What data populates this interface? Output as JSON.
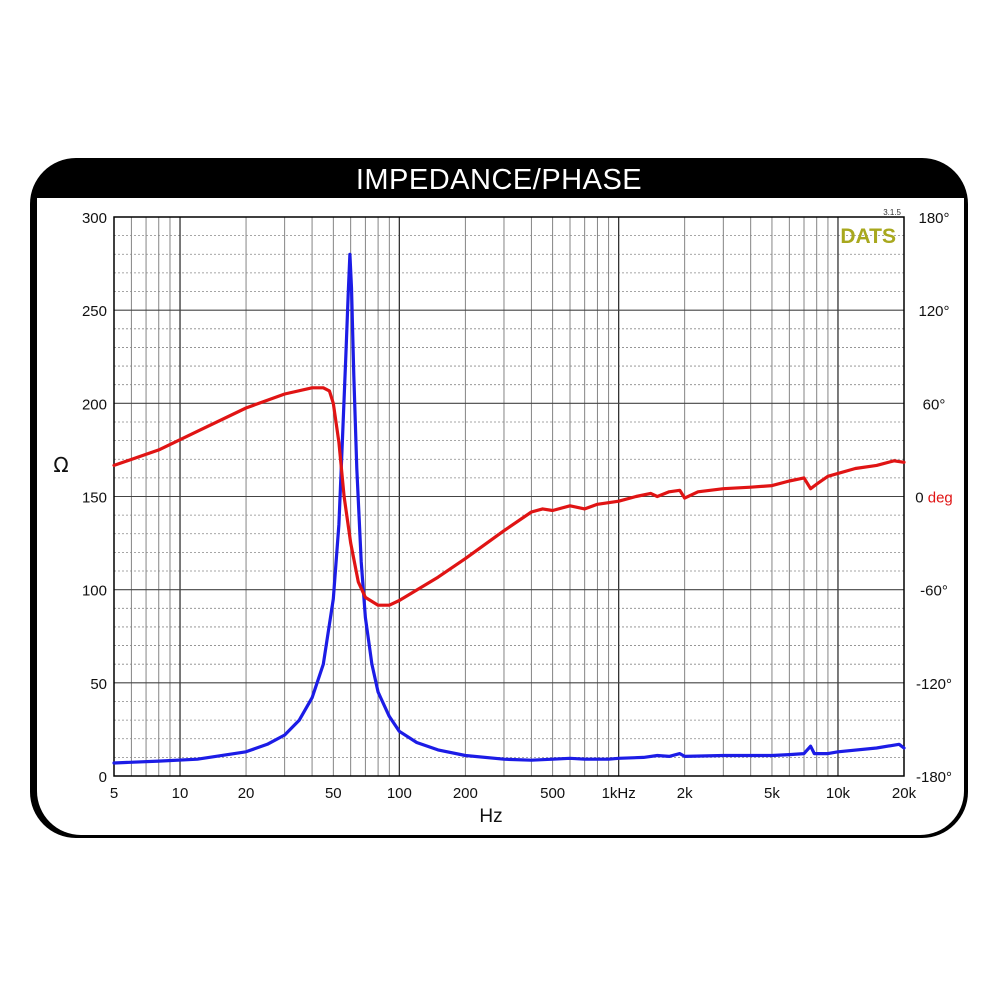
{
  "chart_data": {
    "type": "line",
    "title": "IMPEDANCE/PHASE",
    "brand": "DATS",
    "version": "3.1.5",
    "xlabel": "Hz",
    "ylabel": "Ω",
    "y2label": "0 deg",
    "x_scale": "log",
    "xlim": [
      5,
      20000
    ],
    "ylim": [
      0,
      300
    ],
    "y2lim": [
      -180,
      180
    ],
    "grid": true,
    "x_ticks": [
      {
        "value": 5,
        "label": "5"
      },
      {
        "value": 10,
        "label": "10"
      },
      {
        "value": 20,
        "label": "20"
      },
      {
        "value": 50,
        "label": "50"
      },
      {
        "value": 100,
        "label": "100"
      },
      {
        "value": 200,
        "label": "200"
      },
      {
        "value": 500,
        "label": "500"
      },
      {
        "value": 1000,
        "label": "1kHz"
      },
      {
        "value": 2000,
        "label": "2k"
      },
      {
        "value": 5000,
        "label": "5k"
      },
      {
        "value": 10000,
        "label": "10k"
      },
      {
        "value": 20000,
        "label": "20k"
      }
    ],
    "y_ticks": [
      {
        "value": 0,
        "label": "0"
      },
      {
        "value": 50,
        "label": "50"
      },
      {
        "value": 100,
        "label": "100"
      },
      {
        "value": 150,
        "label": "150"
      },
      {
        "value": 200,
        "label": "200"
      },
      {
        "value": 250,
        "label": "250"
      },
      {
        "value": 300,
        "label": "300"
      }
    ],
    "y2_ticks": [
      {
        "value": 180,
        "label": "180°"
      },
      {
        "value": 120,
        "label": "120°"
      },
      {
        "value": 60,
        "label": "60°"
      },
      {
        "value": 0,
        "label": "0 deg"
      },
      {
        "value": -60,
        "label": "-60°"
      },
      {
        "value": -120,
        "label": "-120°"
      },
      {
        "value": -180,
        "label": "-180°"
      }
    ],
    "series": [
      {
        "axis": "left",
        "color": "#1c1ce6",
        "points": [
          [
            5,
            7
          ],
          [
            8,
            8
          ],
          [
            12,
            9
          ],
          [
            20,
            13
          ],
          [
            25,
            17
          ],
          [
            30,
            22
          ],
          [
            35,
            30
          ],
          [
            40,
            42
          ],
          [
            45,
            60
          ],
          [
            50,
            95
          ],
          [
            53,
            135
          ],
          [
            55,
            180
          ],
          [
            57,
            225
          ],
          [
            58.5,
            260
          ],
          [
            59.5,
            280
          ],
          [
            60.5,
            262
          ],
          [
            62,
            215
          ],
          [
            64,
            165
          ],
          [
            67,
            115
          ],
          [
            70,
            85
          ],
          [
            75,
            60
          ],
          [
            80,
            45
          ],
          [
            90,
            32
          ],
          [
            100,
            24
          ],
          [
            120,
            18
          ],
          [
            150,
            14
          ],
          [
            200,
            11
          ],
          [
            300,
            9
          ],
          [
            400,
            8.5
          ],
          [
            500,
            9
          ],
          [
            600,
            9.5
          ],
          [
            700,
            9
          ],
          [
            900,
            9
          ],
          [
            1000,
            9.5
          ],
          [
            1300,
            10
          ],
          [
            1500,
            11
          ],
          [
            1700,
            10.5
          ],
          [
            1900,
            12
          ],
          [
            2000,
            10.5
          ],
          [
            3000,
            11
          ],
          [
            5000,
            11
          ],
          [
            6000,
            11.5
          ],
          [
            7000,
            12
          ],
          [
            7500,
            16
          ],
          [
            7800,
            12
          ],
          [
            9000,
            12
          ],
          [
            10000,
            13
          ],
          [
            15000,
            15
          ],
          [
            19000,
            17
          ],
          [
            20000,
            15
          ]
        ]
      },
      {
        "axis": "right",
        "color": "#e01414",
        "points": [
          [
            5,
            20
          ],
          [
            8,
            30
          ],
          [
            12,
            42
          ],
          [
            20,
            57
          ],
          [
            30,
            66
          ],
          [
            40,
            70
          ],
          [
            45,
            70
          ],
          [
            48,
            68
          ],
          [
            50,
            60
          ],
          [
            53,
            35
          ],
          [
            56,
            0
          ],
          [
            60,
            -30
          ],
          [
            65,
            -55
          ],
          [
            70,
            -65
          ],
          [
            80,
            -70
          ],
          [
            90,
            -70
          ],
          [
            100,
            -67
          ],
          [
            150,
            -52
          ],
          [
            200,
            -40
          ],
          [
            300,
            -22
          ],
          [
            400,
            -10
          ],
          [
            450,
            -8
          ],
          [
            500,
            -9
          ],
          [
            600,
            -6
          ],
          [
            700,
            -8
          ],
          [
            800,
            -5
          ],
          [
            1000,
            -3
          ],
          [
            1200,
            0
          ],
          [
            1400,
            2
          ],
          [
            1500,
            0
          ],
          [
            1700,
            3
          ],
          [
            1900,
            4
          ],
          [
            2000,
            -1
          ],
          [
            2300,
            3
          ],
          [
            3000,
            5
          ],
          [
            4000,
            6
          ],
          [
            5000,
            7
          ],
          [
            6000,
            10
          ],
          [
            7000,
            12
          ],
          [
            7500,
            5
          ],
          [
            8000,
            8
          ],
          [
            9000,
            13
          ],
          [
            12000,
            18
          ],
          [
            15000,
            20
          ],
          [
            18000,
            23
          ],
          [
            20000,
            22
          ]
        ]
      }
    ]
  }
}
